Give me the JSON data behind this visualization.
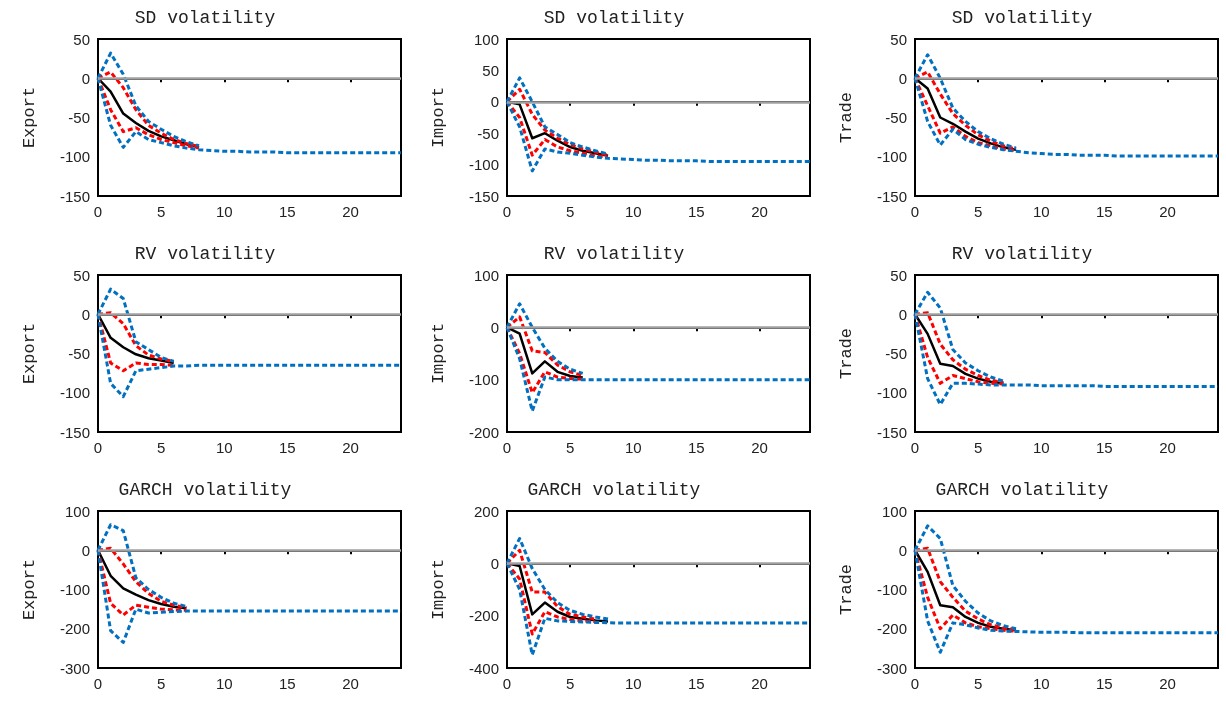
{
  "chart_data": [
    {
      "type": "line",
      "title": "SD volatility",
      "ylabel": "Export",
      "x": [
        0,
        1,
        2,
        3,
        4,
        5,
        6,
        7,
        8,
        9,
        10,
        11,
        12,
        13,
        14,
        15,
        16,
        17,
        18,
        19,
        20,
        21,
        22,
        23,
        24
      ],
      "xlim": [
        0,
        24
      ],
      "xticks": [
        0,
        5,
        10,
        15,
        20
      ],
      "ylim": [
        -150,
        50
      ],
      "yticks": [
        -150,
        -100,
        -50,
        0,
        50
      ],
      "marker": "none",
      "ref_lines": [
        {
          "axis": "y",
          "value": 0,
          "color": "#a0a0a0"
        }
      ],
      "series": [
        {
          "color": "#000000",
          "line_style": "solid",
          "x": [
            0,
            1,
            2,
            3,
            4,
            5,
            6,
            7,
            8
          ],
          "values": [
            0,
            -17,
            -45,
            -57,
            -67,
            -74,
            -79,
            -84,
            -88
          ]
        },
        {
          "color": "#ff0000",
          "line_style": "dashed",
          "x": [
            0,
            1,
            2,
            3,
            4,
            5,
            6,
            7,
            8
          ],
          "values": [
            0,
            8,
            -12,
            -40,
            -60,
            -70,
            -78,
            -83,
            -87
          ]
        },
        {
          "color": "#ff0000",
          "line_style": "dashed",
          "x": [
            0,
            1,
            2,
            3,
            4,
            5,
            6,
            7,
            8
          ],
          "values": [
            0,
            -40,
            -68,
            -63,
            -72,
            -78,
            -82,
            -86,
            -89
          ]
        },
        {
          "color": "#0070c0",
          "line_style": "dashed",
          "x": [
            0,
            1,
            2,
            3,
            4,
            5,
            6,
            7,
            8
          ],
          "values": [
            0,
            32,
            5,
            -35,
            -55,
            -65,
            -74,
            -81,
            -86
          ]
        },
        {
          "color": "#0070c0",
          "line_style": "dashed",
          "values": [
            0,
            -60,
            -88,
            -68,
            -78,
            -82,
            -86,
            -89,
            -91,
            -92,
            -93,
            -93,
            -94,
            -94,
            -94,
            -95,
            -95,
            -95,
            -95,
            -95,
            -95,
            -95,
            -95,
            -95,
            -95
          ]
        }
      ]
    },
    {
      "type": "line",
      "title": "SD volatility",
      "ylabel": "Import",
      "x": [
        0,
        1,
        2,
        3,
        4,
        5,
        6,
        7,
        8,
        9,
        10,
        11,
        12,
        13,
        14,
        15,
        16,
        17,
        18,
        19,
        20,
        21,
        22,
        23,
        24
      ],
      "xlim": [
        0,
        24
      ],
      "xticks": [
        0,
        5,
        10,
        15,
        20
      ],
      "ylim": [
        -150,
        100
      ],
      "yticks": [
        -150,
        -100,
        -50,
        0,
        50,
        100
      ],
      "marker": "none",
      "ref_lines": [
        {
          "axis": "y",
          "value": 0,
          "color": "#a0a0a0"
        }
      ],
      "series": [
        {
          "color": "#000000",
          "line_style": "solid",
          "x": [
            0,
            1,
            2,
            3,
            4,
            5,
            6,
            7,
            8
          ],
          "values": [
            0,
            -4,
            -58,
            -50,
            -62,
            -72,
            -78,
            -82,
            -86
          ]
        },
        {
          "color": "#ff0000",
          "line_style": "dashed",
          "x": [
            0,
            1,
            2,
            3,
            4,
            5,
            6,
            7,
            8
          ],
          "values": [
            0,
            20,
            -20,
            -45,
            -58,
            -68,
            -75,
            -80,
            -85
          ]
        },
        {
          "color": "#ff0000",
          "line_style": "dashed",
          "x": [
            0,
            1,
            2,
            3,
            4,
            5,
            6,
            7,
            8
          ],
          "values": [
            0,
            -25,
            -85,
            -60,
            -72,
            -78,
            -82,
            -86,
            -88
          ]
        },
        {
          "color": "#0070c0",
          "line_style": "dashed",
          "x": [
            0,
            1,
            2,
            3,
            4,
            5,
            6,
            7,
            8
          ],
          "values": [
            0,
            38,
            0,
            -40,
            -52,
            -65,
            -72,
            -78,
            -83
          ]
        },
        {
          "color": "#0070c0",
          "line_style": "dashed",
          "values": [
            0,
            -40,
            -110,
            -75,
            -80,
            -82,
            -85,
            -88,
            -90,
            -91,
            -92,
            -93,
            -93,
            -94,
            -94,
            -94,
            -95,
            -95,
            -95,
            -95,
            -95,
            -95,
            -95,
            -95,
            -95
          ]
        }
      ]
    },
    {
      "type": "line",
      "title": "SD volatility",
      "ylabel": "Trade",
      "x": [
        0,
        1,
        2,
        3,
        4,
        5,
        6,
        7,
        8,
        9,
        10,
        11,
        12,
        13,
        14,
        15,
        16,
        17,
        18,
        19,
        20,
        21,
        22,
        23,
        24
      ],
      "xlim": [
        0,
        24
      ],
      "xticks": [
        0,
        5,
        10,
        15,
        20
      ],
      "ylim": [
        -150,
        50
      ],
      "yticks": [
        -150,
        -100,
        -50,
        0,
        50
      ],
      "marker": "none",
      "ref_lines": [
        {
          "axis": "y",
          "value": 0,
          "color": "#a0a0a0"
        }
      ],
      "series": [
        {
          "color": "#000000",
          "line_style": "solid",
          "x": [
            0,
            1,
            2,
            3,
            4,
            5,
            6,
            7,
            8
          ],
          "values": [
            0,
            -13,
            -50,
            -58,
            -68,
            -77,
            -83,
            -88,
            -91
          ]
        },
        {
          "color": "#ff0000",
          "line_style": "dashed",
          "x": [
            0,
            1,
            2,
            3,
            4,
            5,
            6,
            7,
            8
          ],
          "values": [
            0,
            8,
            -20,
            -45,
            -60,
            -72,
            -80,
            -86,
            -90
          ]
        },
        {
          "color": "#ff0000",
          "line_style": "dashed",
          "x": [
            0,
            1,
            2,
            3,
            4,
            5,
            6,
            7,
            8
          ],
          "values": [
            0,
            -35,
            -70,
            -62,
            -74,
            -82,
            -86,
            -90,
            -92
          ]
        },
        {
          "color": "#0070c0",
          "line_style": "dashed",
          "x": [
            0,
            1,
            2,
            3,
            4,
            5,
            6,
            7,
            8
          ],
          "values": [
            0,
            30,
            0,
            -38,
            -55,
            -68,
            -77,
            -84,
            -89
          ]
        },
        {
          "color": "#0070c0",
          "line_style": "dashed",
          "values": [
            0,
            -55,
            -85,
            -65,
            -78,
            -84,
            -88,
            -91,
            -93,
            -95,
            -96,
            -97,
            -97,
            -98,
            -98,
            -98,
            -99,
            -99,
            -99,
            -99,
            -99,
            -99,
            -99,
            -99,
            -99
          ]
        }
      ]
    },
    {
      "type": "line",
      "title": "RV volatility",
      "ylabel": "Export",
      "x": [
        0,
        1,
        2,
        3,
        4,
        5,
        6,
        7,
        8,
        9,
        10,
        11,
        12,
        13,
        14,
        15,
        16,
        17,
        18,
        19,
        20,
        21,
        22,
        23,
        24
      ],
      "xlim": [
        0,
        24
      ],
      "xticks": [
        0,
        5,
        10,
        15,
        20
      ],
      "ylim": [
        -150,
        50
      ],
      "yticks": [
        -150,
        -100,
        -50,
        0,
        50
      ],
      "marker": "none",
      "ref_lines": [
        {
          "axis": "y",
          "value": 0,
          "color": "#a0a0a0"
        }
      ],
      "series": [
        {
          "color": "#000000",
          "line_style": "solid",
          "x": [
            0,
            1,
            2,
            3,
            4,
            5,
            6
          ],
          "values": [
            0,
            -30,
            -42,
            -51,
            -56,
            -59,
            -62
          ]
        },
        {
          "color": "#ff0000",
          "line_style": "dashed",
          "x": [
            0,
            1,
            2,
            3,
            4,
            5,
            6
          ],
          "values": [
            0,
            2,
            -12,
            -40,
            -52,
            -57,
            -60
          ]
        },
        {
          "color": "#ff0000",
          "line_style": "dashed",
          "x": [
            0,
            1,
            2,
            3,
            4,
            5,
            6
          ],
          "values": [
            0,
            -62,
            -72,
            -62,
            -64,
            -64,
            -65
          ]
        },
        {
          "color": "#0070c0",
          "line_style": "dashed",
          "x": [
            0,
            1,
            2,
            3,
            4,
            5,
            6
          ],
          "values": [
            0,
            32,
            20,
            -35,
            -45,
            -55,
            -60
          ]
        },
        {
          "color": "#0070c0",
          "line_style": "dashed",
          "values": [
            0,
            -88,
            -105,
            -72,
            -70,
            -68,
            -66,
            -66,
            -65,
            -65,
            -65,
            -65,
            -65,
            -65,
            -65,
            -65,
            -65,
            -65,
            -65,
            -65,
            -65,
            -65,
            -65,
            -65,
            -65
          ]
        }
      ]
    },
    {
      "type": "line",
      "title": "RV volatility",
      "ylabel": "Import",
      "x": [
        0,
        1,
        2,
        3,
        4,
        5,
        6,
        7,
        8,
        9,
        10,
        11,
        12,
        13,
        14,
        15,
        16,
        17,
        18,
        19,
        20,
        21,
        22,
        23,
        24
      ],
      "xlim": [
        0,
        24
      ],
      "xticks": [
        0,
        5,
        10,
        15,
        20
      ],
      "ylim": [
        -200,
        100
      ],
      "yticks": [
        -200,
        -100,
        0,
        100
      ],
      "marker": "none",
      "ref_lines": [
        {
          "axis": "y",
          "value": 0,
          "color": "#a0a0a0"
        }
      ],
      "series": [
        {
          "color": "#000000",
          "line_style": "solid",
          "x": [
            0,
            1,
            2,
            3,
            4,
            5,
            6
          ],
          "values": [
            0,
            -12,
            -88,
            -65,
            -85,
            -93,
            -96
          ]
        },
        {
          "color": "#ff0000",
          "line_style": "dashed",
          "x": [
            0,
            1,
            2,
            3,
            4,
            5,
            6
          ],
          "values": [
            0,
            20,
            -45,
            -48,
            -72,
            -85,
            -92
          ]
        },
        {
          "color": "#ff0000",
          "line_style": "dashed",
          "x": [
            0,
            1,
            2,
            3,
            4,
            5,
            6
          ],
          "values": [
            0,
            -50,
            -125,
            -85,
            -95,
            -98,
            -99
          ]
        },
        {
          "color": "#0070c0",
          "line_style": "dashed",
          "x": [
            0,
            1,
            2,
            3,
            4,
            5,
            6
          ],
          "values": [
            0,
            45,
            0,
            -40,
            -65,
            -80,
            -88
          ]
        },
        {
          "color": "#0070c0",
          "line_style": "dashed",
          "values": [
            0,
            -60,
            -160,
            -95,
            -100,
            -100,
            -100,
            -100,
            -100,
            -100,
            -100,
            -100,
            -100,
            -100,
            -100,
            -100,
            -100,
            -100,
            -100,
            -100,
            -100,
            -100,
            -100,
            -100,
            -100
          ]
        }
      ]
    },
    {
      "type": "line",
      "title": "RV volatility",
      "ylabel": "Trade",
      "x": [
        0,
        1,
        2,
        3,
        4,
        5,
        6,
        7,
        8,
        9,
        10,
        11,
        12,
        13,
        14,
        15,
        16,
        17,
        18,
        19,
        20,
        21,
        22,
        23,
        24
      ],
      "xlim": [
        0,
        24
      ],
      "xticks": [
        0,
        5,
        10,
        15,
        20
      ],
      "ylim": [
        -150,
        50
      ],
      "yticks": [
        -150,
        -100,
        -50,
        0,
        50
      ],
      "marker": "none",
      "ref_lines": [
        {
          "axis": "y",
          "value": 0,
          "color": "#a0a0a0"
        }
      ],
      "series": [
        {
          "color": "#000000",
          "line_style": "solid",
          "x": [
            0,
            1,
            2,
            3,
            4,
            5,
            6,
            7
          ],
          "values": [
            0,
            -25,
            -63,
            -66,
            -76,
            -82,
            -86,
            -88
          ]
        },
        {
          "color": "#ff0000",
          "line_style": "dashed",
          "x": [
            0,
            1,
            2,
            3,
            4,
            5,
            6,
            7
          ],
          "values": [
            0,
            2,
            -38,
            -58,
            -70,
            -78,
            -84,
            -87
          ]
        },
        {
          "color": "#ff0000",
          "line_style": "dashed",
          "x": [
            0,
            1,
            2,
            3,
            4,
            5,
            6,
            7
          ],
          "values": [
            0,
            -55,
            -88,
            -78,
            -82,
            -86,
            -88,
            -89
          ]
        },
        {
          "color": "#0070c0",
          "line_style": "dashed",
          "x": [
            0,
            1,
            2,
            3,
            4,
            5,
            6,
            7
          ],
          "values": [
            0,
            28,
            8,
            -45,
            -62,
            -72,
            -80,
            -85
          ]
        },
        {
          "color": "#0070c0",
          "line_style": "dashed",
          "values": [
            0,
            -82,
            -115,
            -88,
            -88,
            -89,
            -90,
            -90,
            -90,
            -90,
            -91,
            -91,
            -91,
            -91,
            -91,
            -92,
            -92,
            -92,
            -92,
            -92,
            -92,
            -92,
            -92,
            -92,
            -92
          ]
        }
      ]
    },
    {
      "type": "line",
      "title": "GARCH volatility",
      "ylabel": "Export",
      "x": [
        0,
        1,
        2,
        3,
        4,
        5,
        6,
        7,
        8,
        9,
        10,
        11,
        12,
        13,
        14,
        15,
        16,
        17,
        18,
        19,
        20,
        21,
        22,
        23,
        24
      ],
      "xlim": [
        0,
        24
      ],
      "xticks": [
        0,
        5,
        10,
        15,
        20
      ],
      "ylim": [
        -300,
        100
      ],
      "yticks": [
        -300,
        -200,
        -100,
        0,
        100
      ],
      "marker": "none",
      "ref_lines": [
        {
          "axis": "y",
          "value": 0,
          "color": "#a0a0a0"
        }
      ],
      "series": [
        {
          "color": "#000000",
          "line_style": "solid",
          "x": [
            0,
            1,
            2,
            3,
            4,
            5,
            6,
            7
          ],
          "values": [
            0,
            -65,
            -97,
            -113,
            -127,
            -137,
            -144,
            -148
          ]
        },
        {
          "color": "#ff0000",
          "line_style": "dashed",
          "x": [
            0,
            1,
            2,
            3,
            4,
            5,
            6,
            7
          ],
          "values": [
            0,
            5,
            -35,
            -80,
            -110,
            -130,
            -140,
            -146
          ]
        },
        {
          "color": "#ff0000",
          "line_style": "dashed",
          "x": [
            0,
            1,
            2,
            3,
            4,
            5,
            6,
            7
          ],
          "values": [
            0,
            -135,
            -165,
            -140,
            -145,
            -150,
            -152,
            -153
          ]
        },
        {
          "color": "#0070c0",
          "line_style": "dashed",
          "x": [
            0,
            1,
            2,
            3,
            4,
            5,
            6,
            7
          ],
          "values": [
            0,
            65,
            50,
            -70,
            -100,
            -120,
            -135,
            -143
          ]
        },
        {
          "color": "#0070c0",
          "line_style": "dashed",
          "values": [
            0,
            -205,
            -235,
            -150,
            -160,
            -158,
            -156,
            -155,
            -155,
            -155,
            -155,
            -155,
            -155,
            -155,
            -155,
            -155,
            -155,
            -155,
            -155,
            -155,
            -155,
            -155,
            -155,
            -155,
            -155
          ]
        }
      ]
    },
    {
      "type": "line",
      "title": "GARCH volatility",
      "ylabel": "Import",
      "x": [
        0,
        1,
        2,
        3,
        4,
        5,
        6,
        7,
        8,
        9,
        10,
        11,
        12,
        13,
        14,
        15,
        16,
        17,
        18,
        19,
        20,
        21,
        22,
        23,
        24
      ],
      "xlim": [
        0,
        24
      ],
      "xticks": [
        0,
        5,
        10,
        15,
        20
      ],
      "ylim": [
        -400,
        200
      ],
      "yticks": [
        -400,
        -200,
        0,
        200
      ],
      "marker": "none",
      "ref_lines": [
        {
          "axis": "y",
          "value": 0,
          "color": "#a0a0a0"
        }
      ],
      "series": [
        {
          "color": "#000000",
          "line_style": "solid",
          "x": [
            0,
            1,
            2,
            3,
            4,
            5,
            6,
            7,
            8
          ],
          "values": [
            0,
            -10,
            -195,
            -150,
            -185,
            -205,
            -212,
            -218,
            -222
          ]
        },
        {
          "color": "#ff0000",
          "line_style": "dashed",
          "x": [
            0,
            1,
            2,
            3,
            4,
            5,
            6,
            7
          ],
          "values": [
            0,
            50,
            -110,
            -110,
            -165,
            -195,
            -205,
            -213
          ]
        },
        {
          "color": "#ff0000",
          "line_style": "dashed",
          "x": [
            0,
            1,
            2,
            3,
            4,
            5,
            6,
            7
          ],
          "values": [
            0,
            -60,
            -270,
            -185,
            -205,
            -215,
            -220,
            -223
          ]
        },
        {
          "color": "#0070c0",
          "line_style": "dashed",
          "x": [
            0,
            1,
            2,
            3,
            4,
            5,
            6,
            7,
            8
          ],
          "values": [
            0,
            95,
            -20,
            -100,
            -150,
            -180,
            -195,
            -205,
            -213
          ]
        },
        {
          "color": "#0070c0",
          "line_style": "dashed",
          "values": [
            0,
            -100,
            -350,
            -210,
            -220,
            -222,
            -224,
            -226,
            -227,
            -228,
            -228,
            -228,
            -228,
            -228,
            -228,
            -228,
            -228,
            -228,
            -228,
            -228,
            -228,
            -228,
            -228,
            -228,
            -228
          ]
        }
      ]
    },
    {
      "type": "line",
      "title": "GARCH volatility",
      "ylabel": "Trade",
      "x": [
        0,
        1,
        2,
        3,
        4,
        5,
        6,
        7,
        8,
        9,
        10,
        11,
        12,
        13,
        14,
        15,
        16,
        17,
        18,
        19,
        20,
        21,
        22,
        23,
        24
      ],
      "xlim": [
        0,
        24
      ],
      "xticks": [
        0,
        5,
        10,
        15,
        20
      ],
      "ylim": [
        -300,
        100
      ],
      "yticks": [
        -300,
        -200,
        -100,
        0,
        100
      ],
      "marker": "none",
      "ref_lines": [
        {
          "axis": "y",
          "value": 0,
          "color": "#a0a0a0"
        }
      ],
      "series": [
        {
          "color": "#000000",
          "line_style": "solid",
          "x": [
            0,
            1,
            2,
            3,
            4,
            5,
            6,
            7,
            8
          ],
          "values": [
            0,
            -55,
            -140,
            -145,
            -170,
            -185,
            -195,
            -200,
            -204
          ]
        },
        {
          "color": "#ff0000",
          "line_style": "dashed",
          "x": [
            0,
            1,
            2,
            3,
            4,
            5,
            6,
            7,
            8
          ],
          "values": [
            0,
            5,
            -80,
            -120,
            -155,
            -175,
            -190,
            -198,
            -202
          ]
        },
        {
          "color": "#ff0000",
          "line_style": "dashed",
          "x": [
            0,
            1,
            2,
            3,
            4,
            5,
            6,
            7,
            8
          ],
          "values": [
            0,
            -120,
            -200,
            -165,
            -185,
            -195,
            -200,
            -204,
            -206
          ]
        },
        {
          "color": "#0070c0",
          "line_style": "dashed",
          "x": [
            0,
            1,
            2,
            3,
            4,
            5,
            6,
            7,
            8
          ],
          "values": [
            0,
            62,
            30,
            -90,
            -130,
            -160,
            -180,
            -192,
            -200
          ]
        },
        {
          "color": "#0070c0",
          "line_style": "dashed",
          "values": [
            0,
            -180,
            -260,
            -185,
            -190,
            -198,
            -204,
            -206,
            -207,
            -208,
            -209,
            -209,
            -209,
            -210,
            -210,
            -210,
            -210,
            -210,
            -210,
            -210,
            -210,
            -210,
            -210,
            -210,
            -210
          ]
        }
      ]
    }
  ]
}
